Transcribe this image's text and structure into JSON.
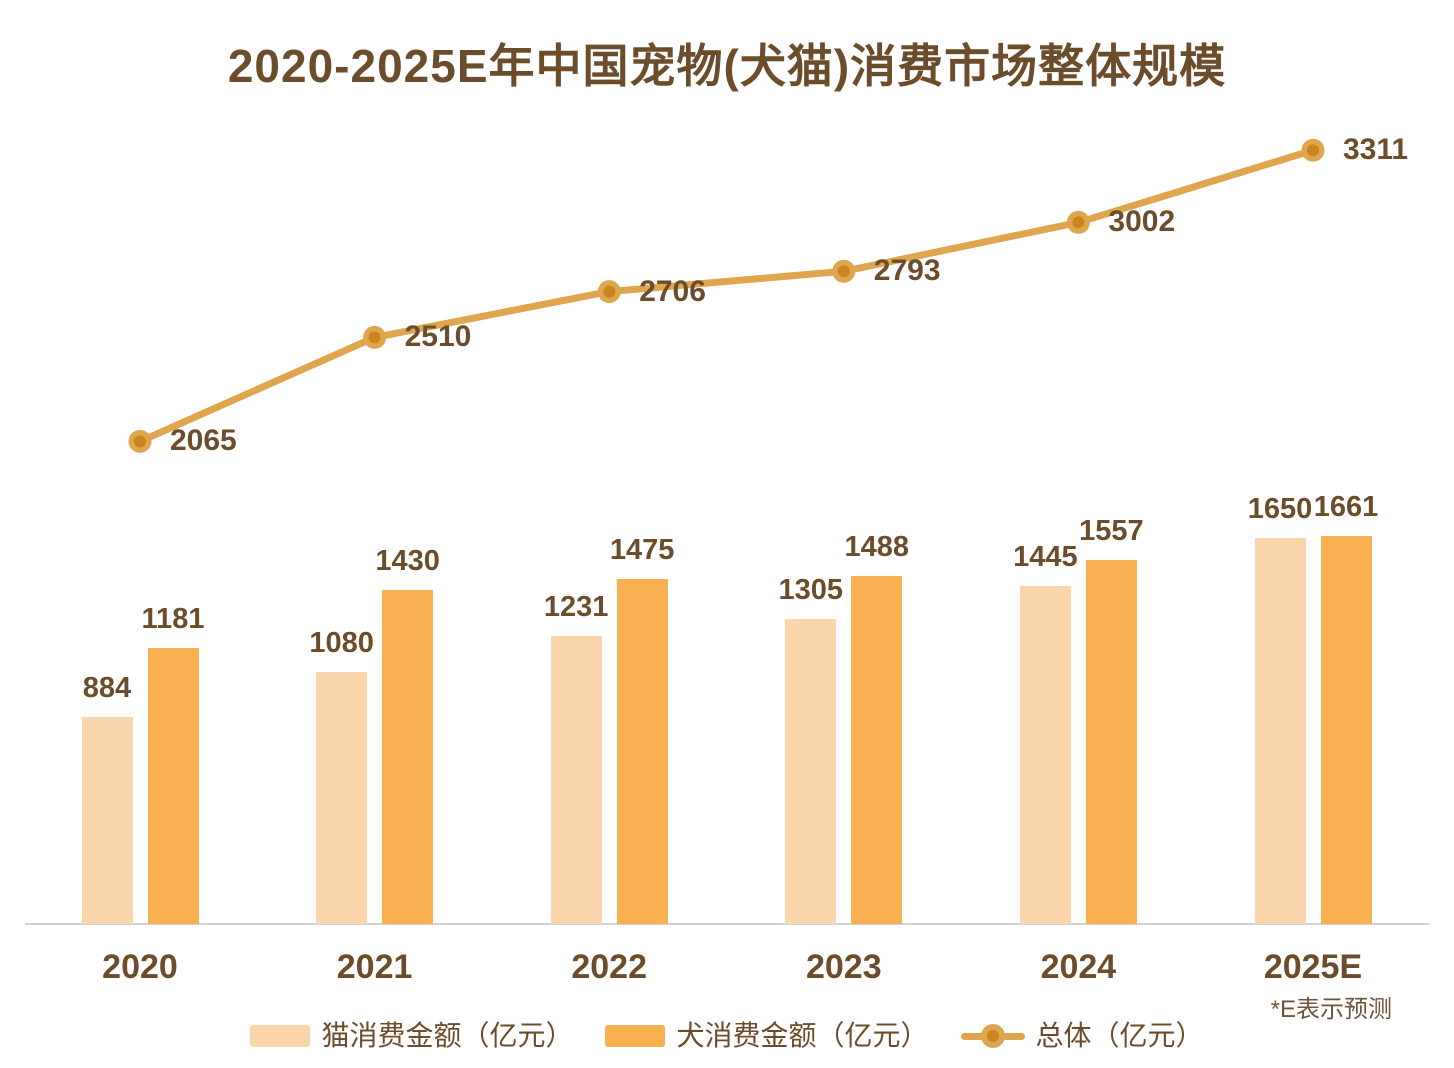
{
  "title": "2020-2025E年中国宠物(犬猫)消费市场整体规模",
  "footnote": "*E表示预测",
  "colors": {
    "background": "#FFFFFF",
    "title_text": "#6B4C2B",
    "label_text": "#6B4C2B",
    "cat_bar": "#FBD5AC",
    "dog_bar": "#F8B050",
    "line": "#DFA64F",
    "marker_core": "#C8871E",
    "axis_line": "#D2D2D2",
    "footnote_text": "#6F543A"
  },
  "chart_data": {
    "type": "bar",
    "subtype": "grouped-bars-with-overlay-line",
    "title": "2020-2025E年中国宠物(犬猫)消费市场整体规模",
    "categories": [
      "2020",
      "2021",
      "2022",
      "2023",
      "2024",
      "2025E"
    ],
    "series": [
      {
        "name": "猫消费金额（亿元）",
        "type": "bar",
        "values": [
          884,
          1080,
          1231,
          1305,
          1445,
          1650
        ]
      },
      {
        "name": "犬消费金额（亿元）",
        "type": "bar",
        "values": [
          1181,
          1430,
          1475,
          1488,
          1557,
          1661
        ]
      },
      {
        "name": "总体（亿元）",
        "type": "line",
        "values": [
          2065,
          2510,
          2706,
          2793,
          3002,
          3311
        ]
      }
    ],
    "data_labels": true,
    "grid": false,
    "value_axis": "hidden",
    "ylim": [
      0,
      3960
    ],
    "legend_position": "bottom",
    "annotation": "*E表示预测"
  },
  "legend": {
    "items": [
      {
        "label": "猫消费金额（亿元）",
        "swatch": "cat-bar"
      },
      {
        "label": "犬消费金额（亿元）",
        "swatch": "dog-bar"
      },
      {
        "label": "总体（亿元）",
        "swatch": "total-line"
      }
    ]
  }
}
